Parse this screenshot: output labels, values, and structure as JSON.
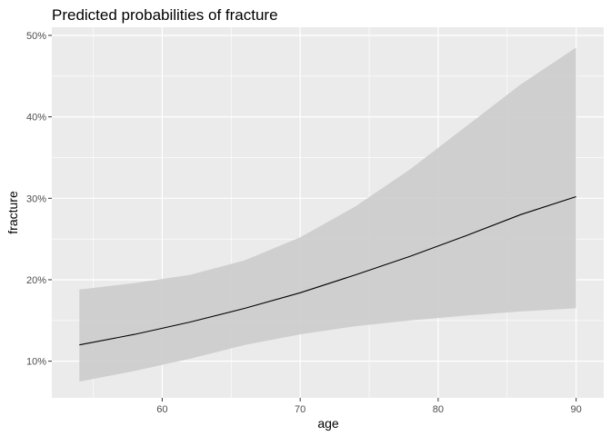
{
  "chart_data": {
    "type": "line",
    "title": "Predicted probabilities of fracture",
    "xlabel": "age",
    "ylabel": "fracture",
    "xlim": [
      52,
      92
    ],
    "ylim": [
      0.055,
      0.51
    ],
    "x_ticks": [
      60,
      70,
      80,
      90
    ],
    "x_tick_labels": [
      "60",
      "70",
      "80",
      "90"
    ],
    "y_ticks": [
      0.1,
      0.2,
      0.3,
      0.4,
      0.5
    ],
    "y_tick_labels": [
      "10%",
      "20%",
      "30%",
      "40%",
      "50%"
    ],
    "grid": true,
    "legend": "none",
    "colors": {
      "panel_background": "#ebebeb",
      "grid_line": "#ffffff",
      "ribbon": "#cccccc",
      "line": "#000000"
    },
    "series": [
      {
        "x": [
          54,
          58,
          62,
          66,
          70,
          74,
          78,
          82,
          86,
          90
        ],
        "values": [
          0.12,
          0.133,
          0.148,
          0.165,
          0.184,
          0.206,
          0.229,
          0.254,
          0.28,
          0.302
        ],
        "lower": [
          0.075,
          0.088,
          0.103,
          0.12,
          0.133,
          0.143,
          0.15,
          0.156,
          0.161,
          0.165
        ],
        "upper": [
          0.188,
          0.196,
          0.206,
          0.224,
          0.252,
          0.29,
          0.336,
          0.388,
          0.44,
          0.485
        ]
      }
    ]
  }
}
